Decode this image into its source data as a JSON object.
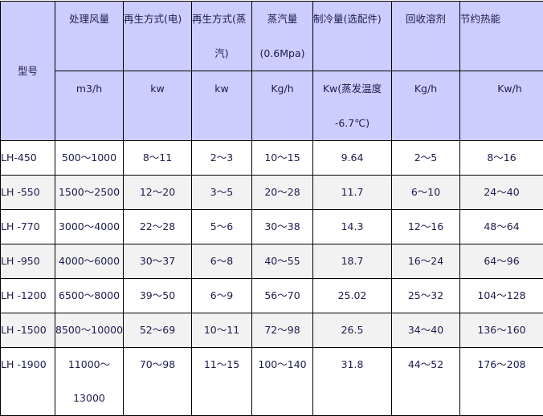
{
  "table": {
    "headers": [
      {
        "title": "型号",
        "unit": ""
      },
      {
        "title": "处理风量",
        "unit": "m3/h"
      },
      {
        "title": "再生方式(电)",
        "unit": "kw"
      },
      {
        "title": "再生方式(蒸汽)",
        "unit": "kw"
      },
      {
        "title": "蒸汽量 (0.6Mpa)",
        "unit": "Kg/h"
      },
      {
        "title": "制冷量(选配件)",
        "unit": "Kw(蒸发温度-6.7℃)"
      },
      {
        "title": "回收溶剂",
        "unit": "Kg/h"
      },
      {
        "title": "节约热能",
        "unit": "Kw/h"
      }
    ],
    "header_lines": {
      "c2_l1": "再生方式(电)",
      "c3_l1": "再生方式(蒸",
      "c3_l2": "汽)",
      "c4_l1": "蒸汽量",
      "c4_l2": "(0.6Mpa)",
      "c5_u1": "Kw(蒸发温度",
      "c5_u2": "-6.7℃)"
    },
    "rows": [
      [
        "LH-450",
        "500～1000",
        "8～11",
        "2～3",
        "10～15",
        "9.64",
        "2～5",
        "8～16"
      ],
      [
        "LH -550",
        "1500～2500",
        "12～20",
        "3～5",
        "20～28",
        "11.7",
        "6～10",
        "24～40"
      ],
      [
        "LH -770",
        "3000～4000",
        "22～28",
        "5～6",
        "30～38",
        "14.3",
        "12～16",
        "48～64"
      ],
      [
        "LH -950",
        "4000～6000",
        "30～37",
        "6～8",
        "40～55",
        "18.7",
        "16～24",
        "64～96"
      ],
      [
        "LH -1200",
        "6500～8000",
        "39～50",
        "6～9",
        "56～70",
        "25.02",
        "25～32",
        "104～128"
      ],
      [
        "LH -1500",
        "8500～10000",
        "52～69",
        "10～11",
        "72～98",
        "26.5",
        "34～40",
        "136～160"
      ],
      [
        "LH -1900",
        "11000～13000",
        "70～98",
        "11～15",
        "100～140",
        "31.8",
        "44～52",
        "176～208"
      ]
    ],
    "last_row_air_lines": [
      "11000～",
      "13000"
    ]
  },
  "colors": {
    "header_bg": "#ccccff",
    "alt_row_bg": "#f2f2f2",
    "text": "#1c1c4e"
  }
}
